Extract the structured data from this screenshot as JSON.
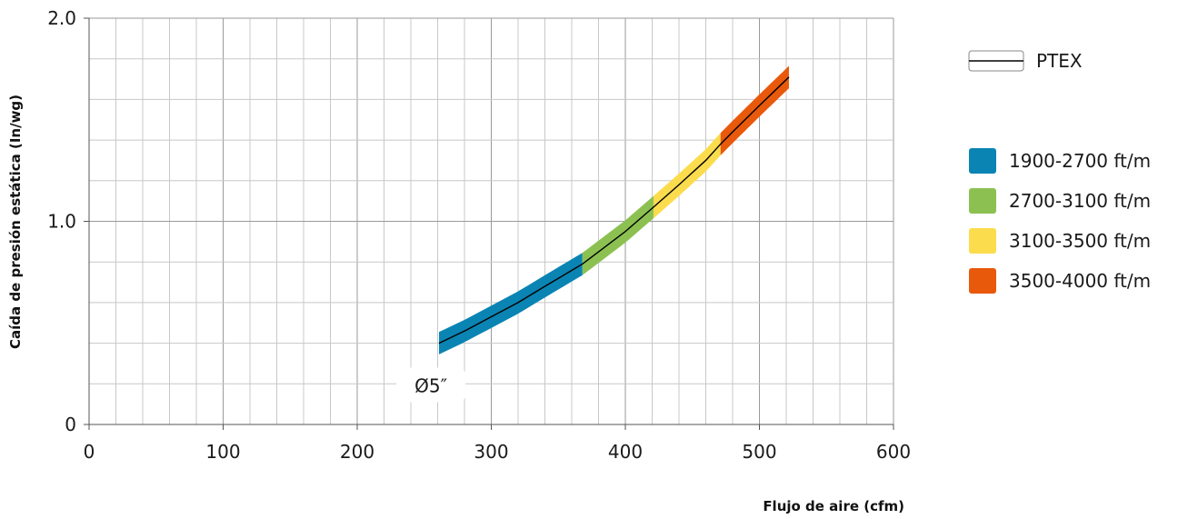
{
  "chart_data": {
    "type": "line",
    "title": "",
    "xlabel": "Flujo de aire (cfm)",
    "ylabel": "Caída de presión estática (In/wg)",
    "xlim": [
      0,
      600
    ],
    "ylim": [
      0,
      2.0
    ],
    "x_ticks": [
      0,
      100,
      200,
      300,
      400,
      500,
      600
    ],
    "x_tick_labels": [
      "0",
      "100",
      "200",
      "300",
      "400",
      "500",
      "600"
    ],
    "y_ticks": [
      0,
      1.0,
      2.0
    ],
    "y_tick_labels": [
      "0",
      "1.0",
      "2.0"
    ],
    "grid": true,
    "x_minor_step": 20,
    "y_minor_step": 0.2,
    "series": [
      {
        "name": "PTEX",
        "color": "#000000",
        "x": [
          261,
          280,
          300,
          320,
          340,
          368,
          380,
          400,
          421,
          440,
          460,
          471,
          480,
          500,
          522
        ],
        "y": [
          0.4,
          0.46,
          0.53,
          0.6,
          0.68,
          0.79,
          0.85,
          0.95,
          1.07,
          1.18,
          1.3,
          1.38,
          1.44,
          1.57,
          1.71
        ]
      }
    ],
    "velocity_bands": {
      "half_width": 0.055,
      "items": [
        {
          "label": "1900-2700 ft/m",
          "color": "#0a84b3",
          "x_start": 261,
          "x_end": 368
        },
        {
          "label": "2700-3100 ft/m",
          "color": "#8cc152",
          "x_start": 368,
          "x_end": 421
        },
        {
          "label": "3100-3500 ft/m",
          "color": "#fbdc4c",
          "x_start": 421,
          "x_end": 471
        },
        {
          "label": "3500-4000 ft/m",
          "color": "#e8590c",
          "x_start": 471,
          "x_end": 522
        }
      ]
    },
    "annotations": [
      {
        "text": "Ø5″",
        "x": 255,
        "y": 0.19
      }
    ],
    "legend_position": "right"
  }
}
